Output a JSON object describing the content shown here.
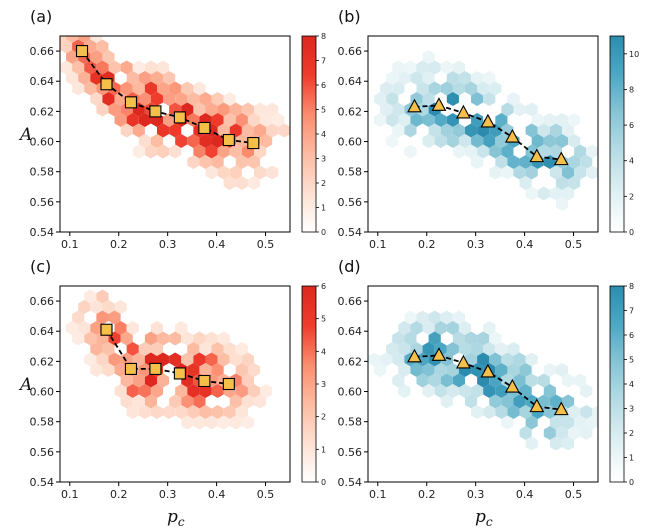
{
  "figure": {
    "ylabel": "A",
    "xlabel": "p",
    "xlabel_subscript": "c"
  },
  "chart_data": [
    {
      "panel": "(a)",
      "type": "scatter",
      "overlay": "hexbin density",
      "colormap": "Reds",
      "colorbar": {
        "min": 0,
        "max": 8,
        "ticks": [
          "0",
          "1",
          "2",
          "3",
          "4",
          "5",
          "6",
          "7",
          "8"
        ]
      },
      "xlim": [
        0.08,
        0.55
      ],
      "ylim": [
        0.54,
        0.67
      ],
      "xticks": [
        "0.1",
        "0.2",
        "0.3",
        "0.4",
        "0.5"
      ],
      "yticks": [
        "0.54",
        "0.56",
        "0.58",
        "0.60",
        "0.62",
        "0.64",
        "0.66"
      ],
      "series": [
        {
          "marker": "square",
          "color": "#f5c04a",
          "x": [
            0.125,
            0.175,
            0.225,
            0.275,
            0.325,
            0.375,
            0.425,
            0.475
          ],
          "y": [
            0.66,
            0.638,
            0.626,
            0.62,
            0.616,
            0.609,
            0.601,
            0.599
          ]
        }
      ]
    },
    {
      "panel": "(b)",
      "type": "scatter",
      "overlay": "hexbin density",
      "colormap": "Blues",
      "colorbar": {
        "min": 0,
        "max": 11,
        "ticks": [
          "0",
          "2",
          "4",
          "6",
          "8",
          "10"
        ]
      },
      "xlim": [
        0.08,
        0.55
      ],
      "ylim": [
        0.54,
        0.67
      ],
      "xticks": [
        "0.1",
        "0.2",
        "0.3",
        "0.4",
        "0.5"
      ],
      "yticks": [
        "0.54",
        "0.56",
        "0.58",
        "0.60",
        "0.62",
        "0.64",
        "0.66"
      ],
      "series": [
        {
          "marker": "triangle",
          "color": "#f5c04a",
          "x": [
            0.175,
            0.225,
            0.275,
            0.325,
            0.375,
            0.425,
            0.475
          ],
          "y": [
            0.623,
            0.624,
            0.619,
            0.613,
            0.603,
            0.59,
            0.588
          ]
        }
      ]
    },
    {
      "panel": "(c)",
      "type": "scatter",
      "overlay": "hexbin density",
      "colormap": "Reds",
      "colorbar": {
        "min": 0,
        "max": 6,
        "ticks": [
          "0",
          "1",
          "2",
          "3",
          "4",
          "5",
          "6"
        ]
      },
      "xlim": [
        0.08,
        0.55
      ],
      "ylim": [
        0.54,
        0.67
      ],
      "xticks": [
        "0.1",
        "0.2",
        "0.3",
        "0.4",
        "0.5"
      ],
      "yticks": [
        "0.54",
        "0.56",
        "0.58",
        "0.60",
        "0.62",
        "0.64",
        "0.66"
      ],
      "series": [
        {
          "marker": "square",
          "color": "#f5c04a",
          "x": [
            0.175,
            0.225,
            0.275,
            0.325,
            0.375,
            0.425
          ],
          "y": [
            0.641,
            0.615,
            0.615,
            0.612,
            0.607,
            0.605
          ]
        }
      ]
    },
    {
      "panel": "(d)",
      "type": "scatter",
      "overlay": "hexbin density",
      "colormap": "Blues",
      "colorbar": {
        "min": 0,
        "max": 8,
        "ticks": [
          "0",
          "1",
          "2",
          "3",
          "4",
          "5",
          "6",
          "7",
          "8"
        ]
      },
      "xlim": [
        0.08,
        0.55
      ],
      "ylim": [
        0.54,
        0.67
      ],
      "xticks": [
        "0.1",
        "0.2",
        "0.3",
        "0.4",
        "0.5"
      ],
      "yticks": [
        "0.54",
        "0.56",
        "0.58",
        "0.60",
        "0.62",
        "0.64",
        "0.66"
      ],
      "series": [
        {
          "marker": "triangle",
          "color": "#f5c04a",
          "x": [
            0.175,
            0.225,
            0.275,
            0.325,
            0.375,
            0.425,
            0.475
          ],
          "y": [
            0.623,
            0.624,
            0.619,
            0.613,
            0.603,
            0.59,
            0.588
          ]
        }
      ]
    }
  ]
}
